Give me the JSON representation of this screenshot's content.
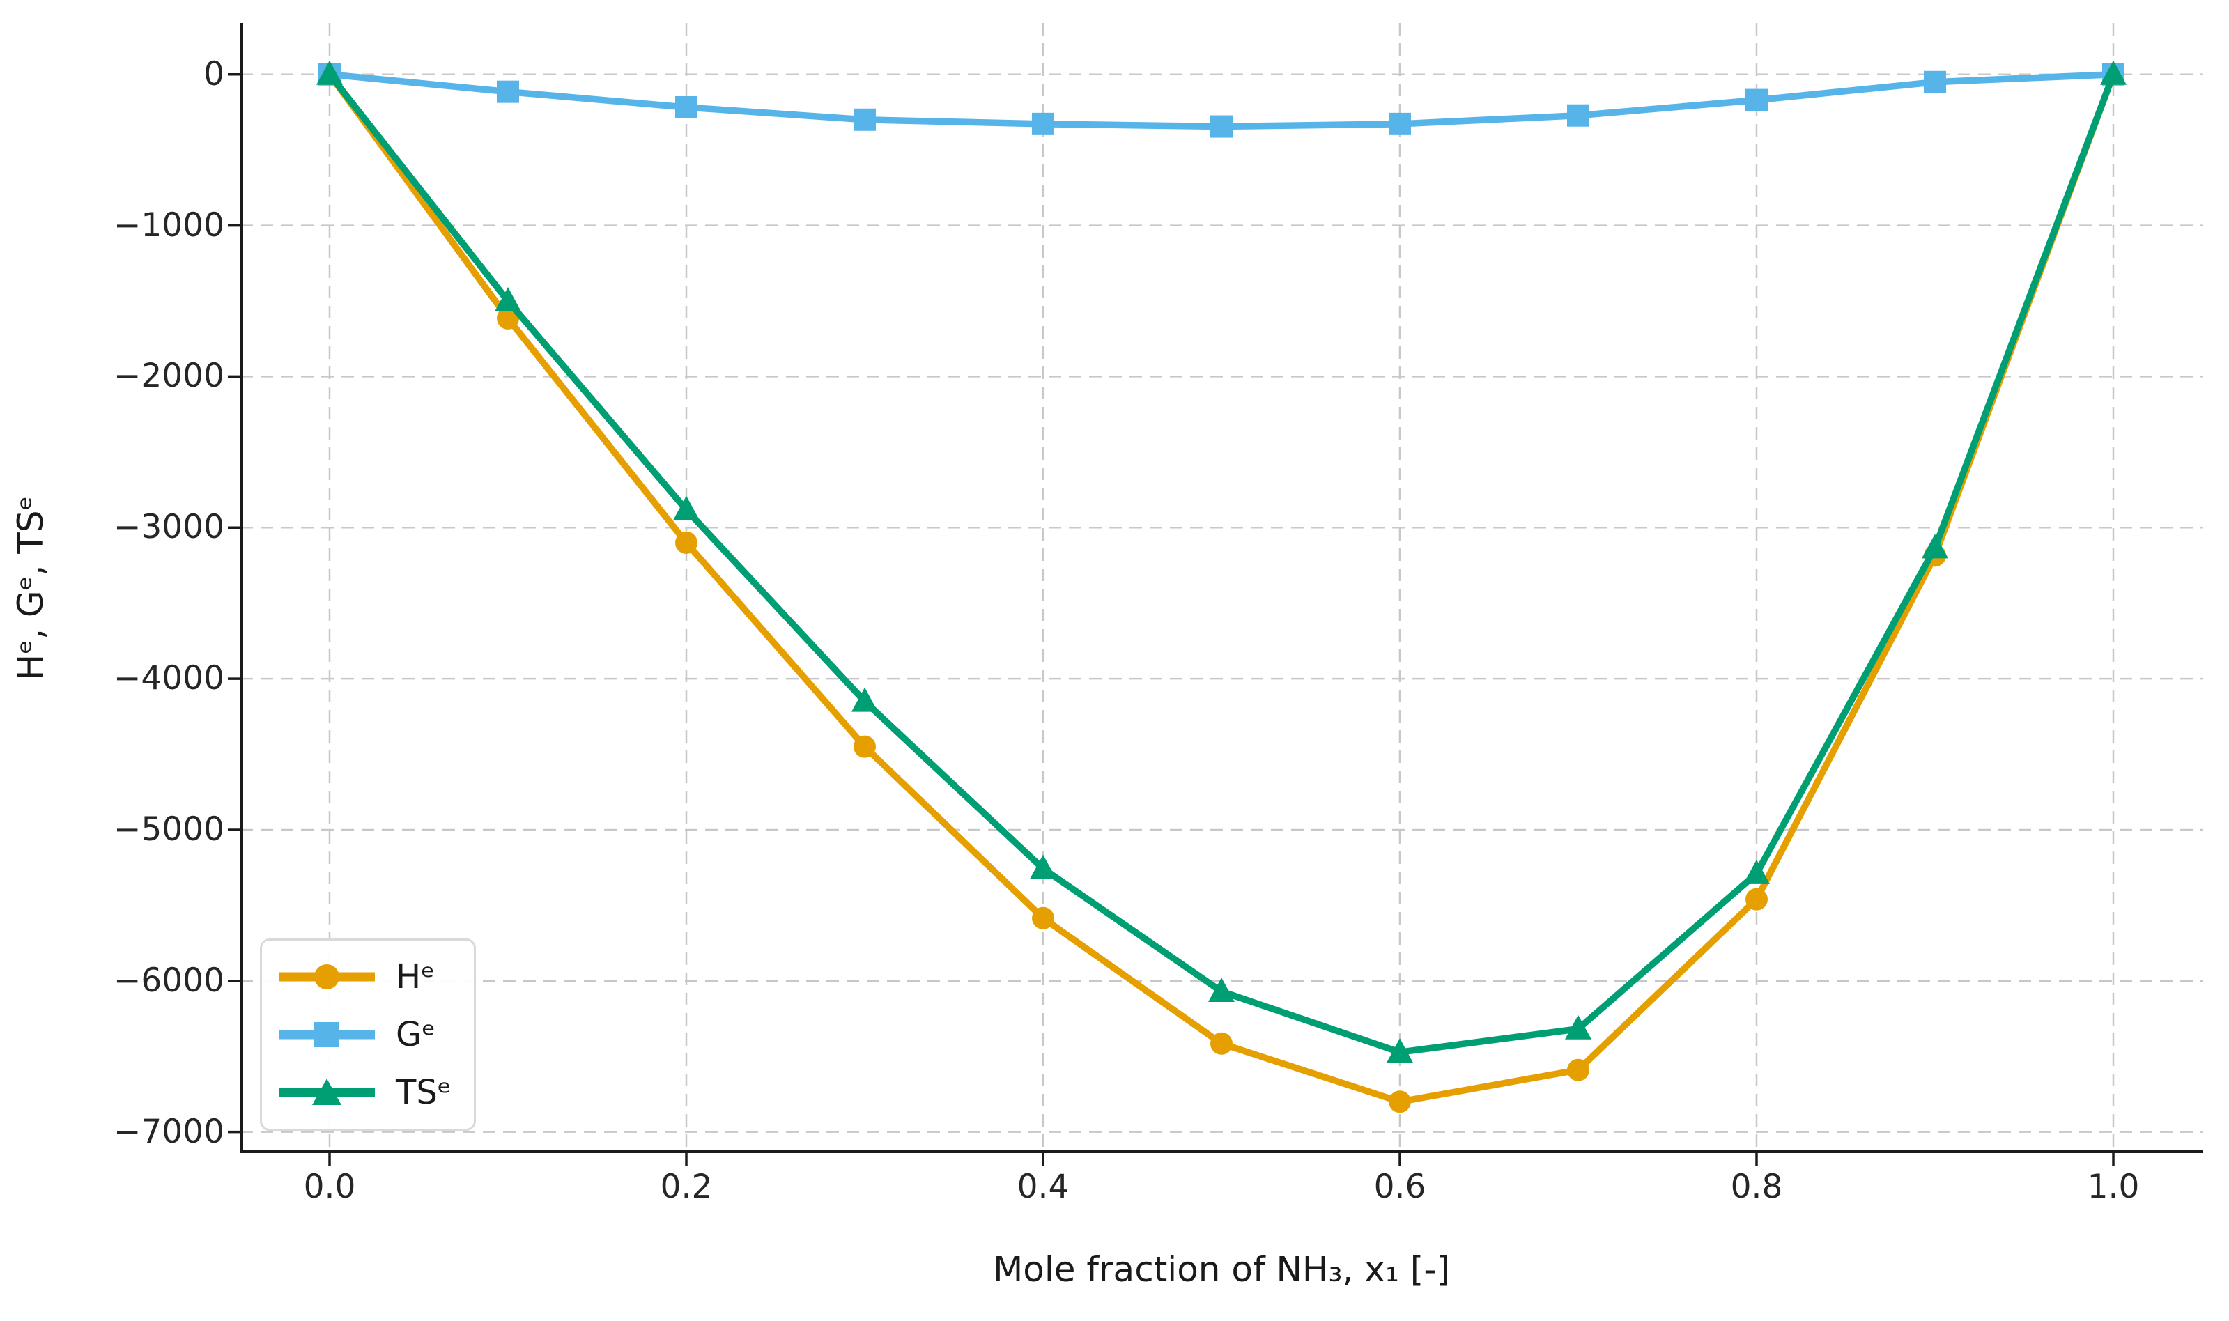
{
  "figure": {
    "background": "#ffffff",
    "spine_color": "#1a1a1a",
    "grid_color": "#c8c8c8",
    "tick_text_color": "#262626"
  },
  "chart_data": {
    "type": "line",
    "x": [
      0.0,
      0.1,
      0.2,
      0.3,
      0.4,
      0.5,
      0.6,
      0.7,
      0.8,
      0.9,
      1.0
    ],
    "series": [
      {
        "name": "Hᵉ",
        "marker": "circle",
        "color": "#E69F00",
        "values": [
          0,
          -1615,
          -3100,
          -4450,
          -5585,
          -6415,
          -6800,
          -6590,
          -5460,
          -3185,
          0
        ]
      },
      {
        "name": "Gᵉ",
        "marker": "square",
        "color": "#56B4E9",
        "values": [
          0,
          -115,
          -218,
          -300,
          -328,
          -345,
          -328,
          -272,
          -170,
          -51,
          0
        ]
      },
      {
        "name": "TSᵉ",
        "marker": "triangle",
        "color": "#009E73",
        "values": [
          0,
          -1500,
          -2882,
          -4150,
          -5257,
          -6070,
          -6472,
          -6318,
          -5290,
          -3134,
          0
        ]
      }
    ],
    "title": "",
    "xlabel": "Mole fraction of NH₃, x₁ [-]",
    "ylabel": "Hᵉ, Gᵉ, TSᵉ",
    "xlim": [
      -0.05,
      1.05
    ],
    "ylim": [
      -7140,
      340
    ],
    "x_ticks": [
      0.0,
      0.2,
      0.4,
      0.6,
      0.8,
      1.0
    ],
    "x_tick_labels": [
      "0.0",
      "0.2",
      "0.4",
      "0.6",
      "0.8",
      "1.0"
    ],
    "y_ticks": [
      0,
      -1000,
      -2000,
      -3000,
      -4000,
      -5000,
      -6000,
      -7000
    ],
    "y_tick_labels": [
      "0",
      "−1000",
      "−2000",
      "−3000",
      "−4000",
      "−5000",
      "−6000",
      "−7000"
    ],
    "grid": true,
    "legend_position": "lower left"
  }
}
